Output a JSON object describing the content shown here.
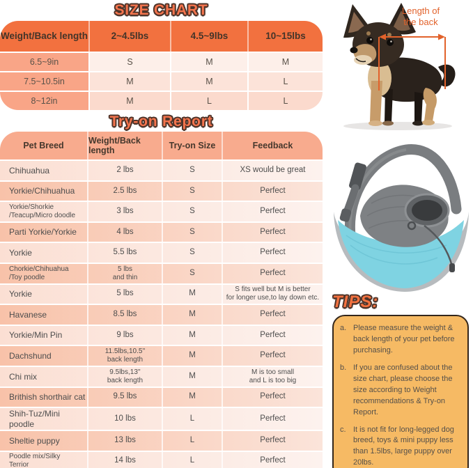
{
  "size_chart": {
    "title": "SIZE CHART",
    "columns": [
      "Weight/Back length",
      "2~4.5lbs",
      "4.5~9lbs",
      "10~15lbs"
    ],
    "rows": [
      {
        "label": "6.5~9in",
        "values": [
          "S",
          "M",
          "M"
        ]
      },
      {
        "label": "7.5~10.5in",
        "values": [
          "M",
          "M",
          "L"
        ]
      },
      {
        "label": "8~12in",
        "values": [
          "M",
          "L",
          "L"
        ]
      }
    ]
  },
  "tryon_report": {
    "title": "Try-on Report",
    "columns": [
      "Pet Breed",
      "Weight/Back length",
      "Try-on Size",
      "Feedback"
    ],
    "rows": [
      {
        "breed": "Chihuahua",
        "weight": "2 lbs",
        "size": "S",
        "feedback": "XS would be great"
      },
      {
        "breed": "Yorkie/Chihuahua",
        "weight": "2.5 lbs",
        "size": "S",
        "feedback": "Perfect"
      },
      {
        "breed": "Yorkie/Shorkie\n/Teacup/Micro doodle",
        "weight": "3 lbs",
        "size": "S",
        "feedback": "Perfect"
      },
      {
        "breed": "Parti Yorkie/Yorkie",
        "weight": "4 lbs",
        "size": "S",
        "feedback": "Perfect"
      },
      {
        "breed": "Yorkie",
        "weight": "5.5 lbs",
        "size": "S",
        "feedback": "Perfect"
      },
      {
        "breed": "Chorkie/Chihuahua\n/Toy poodle",
        "weight": "5 lbs\nand thin",
        "size": "S",
        "feedback": "Perfect"
      },
      {
        "breed": "Yorkie",
        "weight": "5 lbs",
        "size": "M",
        "feedback": "S fits well but M is better\nfor longer use,to lay down etc."
      },
      {
        "breed": "Havanese",
        "weight": "8.5 lbs",
        "size": "M",
        "feedback": "Perfect"
      },
      {
        "breed": "Yorkie/Min Pin",
        "weight": "9 lbs",
        "size": "M",
        "feedback": "Perfect"
      },
      {
        "breed": "Dachshund",
        "weight": "11.5lbs,10.5''\nback length",
        "size": "M",
        "feedback": "Perfect"
      },
      {
        "breed": "Chi mix",
        "weight": "9.5lbs,13''\nback length",
        "size": "M",
        "feedback": "M is too small\nand L is too big"
      },
      {
        "breed": "Brithish shorthair cat",
        "weight": "9.5 lbs",
        "size": "M",
        "feedback": "Perfect"
      },
      {
        "breed": "Shih-Tuz/Mini poodle",
        "weight": "10 lbs",
        "size": "L",
        "feedback": "Perfect"
      },
      {
        "breed": "Sheltie puppy",
        "weight": "13 lbs",
        "size": "L",
        "feedback": "Perfect"
      },
      {
        "breed": "Poodle mix/Silky\n Terrior",
        "weight": "14 lbs",
        "size": "L",
        "feedback": "Perfect"
      }
    ]
  },
  "annotation": {
    "label": "Length of\nthe back"
  },
  "tips": {
    "title": "TIPS:",
    "items": [
      {
        "marker": "a.",
        "text": "Please measure the weight & back length of your pet before purchasing."
      },
      {
        "marker": "b.",
        "text": "If you are confused about the size chart, please choose the size according to Weight recommendations & Try-on Report."
      },
      {
        "marker": "c.",
        "text": "It is not fit for long-legged dog breed, toys & mini puppy less than 1.5lbs, large puppy over 20lbs."
      }
    ]
  },
  "colors": {
    "accent": "#f2713f",
    "title-fill": "#f4744d",
    "outline": "#4e342a",
    "tryon-header": "#f8ab8e",
    "label-col": "#f9a587",
    "annotation": "#e2622b",
    "tips-bg": "#f6ba64",
    "tips-border": "#33261b",
    "bag-blue": "#7fd3e2"
  }
}
